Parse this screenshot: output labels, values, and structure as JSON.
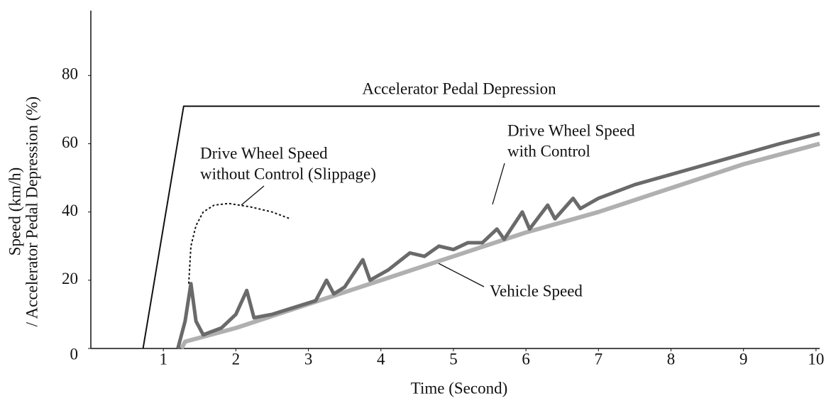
{
  "chart_data": {
    "type": "line",
    "xlabel": "Time (Second)",
    "ylabel": [
      "Speed (km/h)",
      "/ Accelerator Pedal Depression (%)"
    ],
    "xlim": [
      0,
      10.05
    ],
    "ylim": [
      0,
      99
    ],
    "xticks": [
      1,
      2,
      3,
      4,
      5,
      6,
      7,
      8,
      9,
      10
    ],
    "yticks": [
      0,
      20,
      40,
      60,
      80
    ],
    "series": [
      {
        "color": "#111111",
        "style": "solid",
        "width": 2,
        "x": [
          0.72,
          1.28,
          10.05
        ],
        "values": [
          0,
          71,
          71
        ]
      },
      {
        "color": "#b0b0b0",
        "style": "solid",
        "width": 6,
        "x": [
          1.25,
          1.3,
          2,
          3,
          4,
          5,
          6,
          7,
          8,
          9,
          10.05
        ],
        "values": [
          0,
          2,
          6,
          13,
          20,
          27,
          34,
          40,
          47,
          54,
          60
        ]
      },
      {
        "color": "#6a6a6a",
        "style": "solid",
        "width": 5,
        "x": [
          1.2,
          1.3,
          1.38,
          1.45,
          1.55,
          1.8,
          2.0,
          2.15,
          2.25,
          2.5,
          2.8,
          3.1,
          3.25,
          3.35,
          3.5,
          3.75,
          3.85,
          4.1,
          4.4,
          4.6,
          4.8,
          5.0,
          5.2,
          5.4,
          5.6,
          5.7,
          5.95,
          6.05,
          6.3,
          6.4,
          6.65,
          6.75,
          7.0,
          7.5,
          8,
          8.5,
          9,
          9.5,
          10.05
        ],
        "values": [
          0,
          8,
          19,
          8,
          4,
          6,
          10,
          17,
          9,
          10,
          12,
          14,
          20,
          16,
          18,
          26,
          20,
          23,
          28,
          27,
          30,
          29,
          31,
          31,
          35,
          32,
          40,
          35,
          42,
          38,
          44,
          41,
          44,
          48,
          51,
          54,
          57,
          60,
          63
        ]
      },
      {
        "color": "#111111",
        "style": "dotted",
        "width": 2,
        "x": [
          1.35,
          1.38,
          1.45,
          1.55,
          1.7,
          1.9,
          2.2,
          2.5,
          2.75
        ],
        "values": [
          19,
          30,
          36,
          40,
          42,
          42.5,
          41.5,
          40,
          38
        ]
      }
    ],
    "annotations": [
      {
        "lines": [
          "Accelerator Pedal Depression"
        ]
      },
      {
        "lines": [
          "Drive Wheel Speed",
          "with Control"
        ]
      },
      {
        "lines": [
          "Drive Wheel Speed",
          "without Control (Slippage)"
        ]
      },
      {
        "lines": [
          "Vehicle Speed"
        ]
      }
    ]
  }
}
